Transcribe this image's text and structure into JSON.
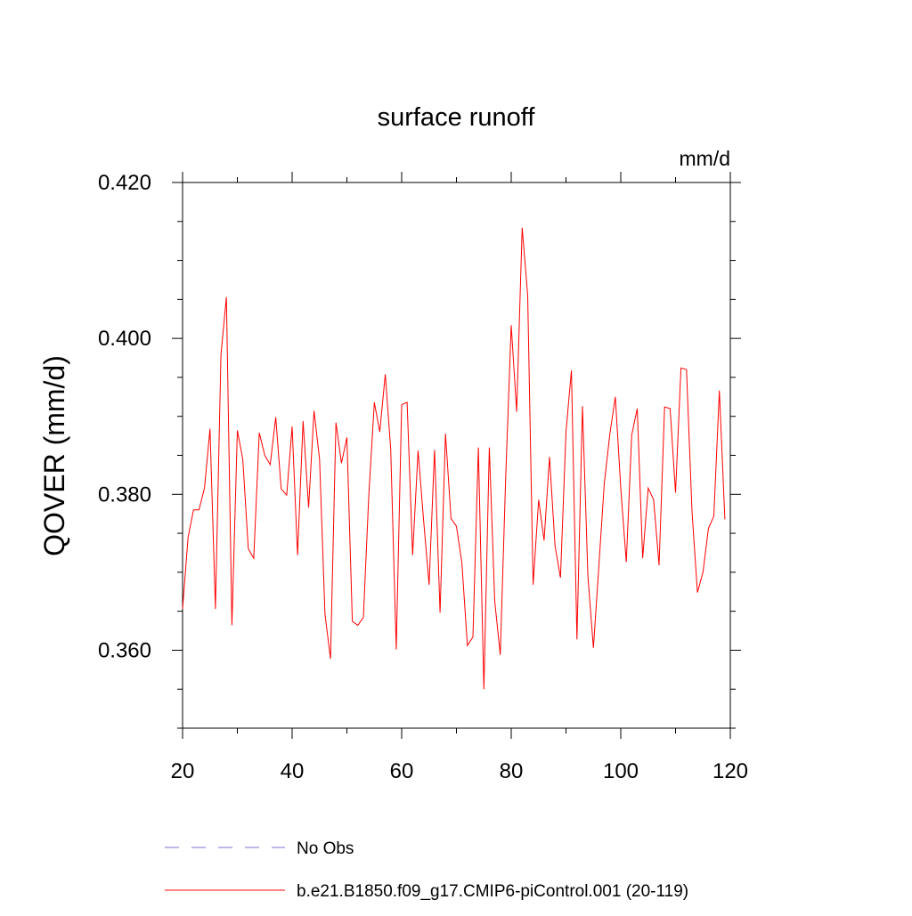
{
  "chart_data": {
    "type": "line",
    "title": "surface runoff",
    "units_label": "mm/d",
    "ylabel": "QOVER  (mm/d)",
    "xlabel": "",
    "xlim": [
      20,
      120
    ],
    "ylim": [
      0.35,
      0.42
    ],
    "x_ticks": [
      20,
      40,
      60,
      80,
      100,
      120
    ],
    "x_tick_labels": [
      "20",
      "40",
      "60",
      "80",
      "100",
      "120"
    ],
    "y_ticks": [
      0.36,
      0.38,
      0.4,
      0.42
    ],
    "y_tick_labels": [
      "0.360",
      "0.380",
      "0.400",
      "0.420"
    ],
    "grid": false,
    "legend_position": "bottom",
    "legend": [
      {
        "label": "No Obs",
        "color": "#7b6fd6",
        "style": "dashed"
      },
      {
        "label": "b.e21.B1850.f09_g17.CMIP6-piControl.001 (20-119)",
        "color": "#ff0000",
        "style": "solid"
      }
    ],
    "series": [
      {
        "name": "b.e21.B1850.f09_g17.CMIP6-piControl.001 (20-119)",
        "color": "#ff0000",
        "x": [
          20,
          21,
          22,
          23,
          24,
          25,
          26,
          27,
          28,
          29,
          30,
          31,
          32,
          33,
          34,
          35,
          36,
          37,
          38,
          39,
          40,
          41,
          42,
          43,
          44,
          45,
          46,
          47,
          48,
          49,
          50,
          51,
          52,
          53,
          54,
          55,
          56,
          57,
          58,
          59,
          60,
          61,
          62,
          63,
          64,
          65,
          66,
          67,
          68,
          69,
          70,
          71,
          72,
          73,
          74,
          75,
          76,
          77,
          78,
          79,
          80,
          81,
          82,
          83,
          84,
          85,
          86,
          87,
          88,
          89,
          90,
          91,
          92,
          93,
          94,
          95,
          96,
          97,
          98,
          99,
          100,
          101,
          102,
          103,
          104,
          105,
          106,
          107,
          108,
          109,
          110,
          111,
          112,
          113,
          114,
          115,
          116,
          117,
          118,
          119
        ],
        "values": [
          0.3653,
          0.3745,
          0.378,
          0.378,
          0.3808,
          0.3884,
          0.3653,
          0.3979,
          0.4053,
          0.3632,
          0.3882,
          0.3845,
          0.373,
          0.3718,
          0.3879,
          0.385,
          0.3838,
          0.3899,
          0.3807,
          0.3799,
          0.3887,
          0.3722,
          0.3894,
          0.3783,
          0.3907,
          0.3845,
          0.3646,
          0.3589,
          0.3892,
          0.384,
          0.3873,
          0.3637,
          0.3632,
          0.3642,
          0.3799,
          0.3918,
          0.388,
          0.3954,
          0.3858,
          0.3601,
          0.3915,
          0.3918,
          0.3722,
          0.3856,
          0.3767,
          0.3684,
          0.3857,
          0.3648,
          0.3878,
          0.3769,
          0.3759,
          0.3712,
          0.3606,
          0.3617,
          0.386,
          0.355,
          0.386,
          0.3663,
          0.3594,
          0.3822,
          0.4017,
          0.3906,
          0.4142,
          0.4055,
          0.3684,
          0.3793,
          0.3741,
          0.3848,
          0.3734,
          0.3693,
          0.388,
          0.3959,
          0.3614,
          0.3913,
          0.3695,
          0.3603,
          0.3708,
          0.3814,
          0.3877,
          0.3925,
          0.3808,
          0.3713,
          0.3876,
          0.391,
          0.3718,
          0.3808,
          0.3793,
          0.3709,
          0.3912,
          0.391,
          0.3802,
          0.3962,
          0.396,
          0.3778,
          0.3674,
          0.37,
          0.3756,
          0.3772,
          0.3933,
          0.3768
        ]
      }
    ]
  }
}
